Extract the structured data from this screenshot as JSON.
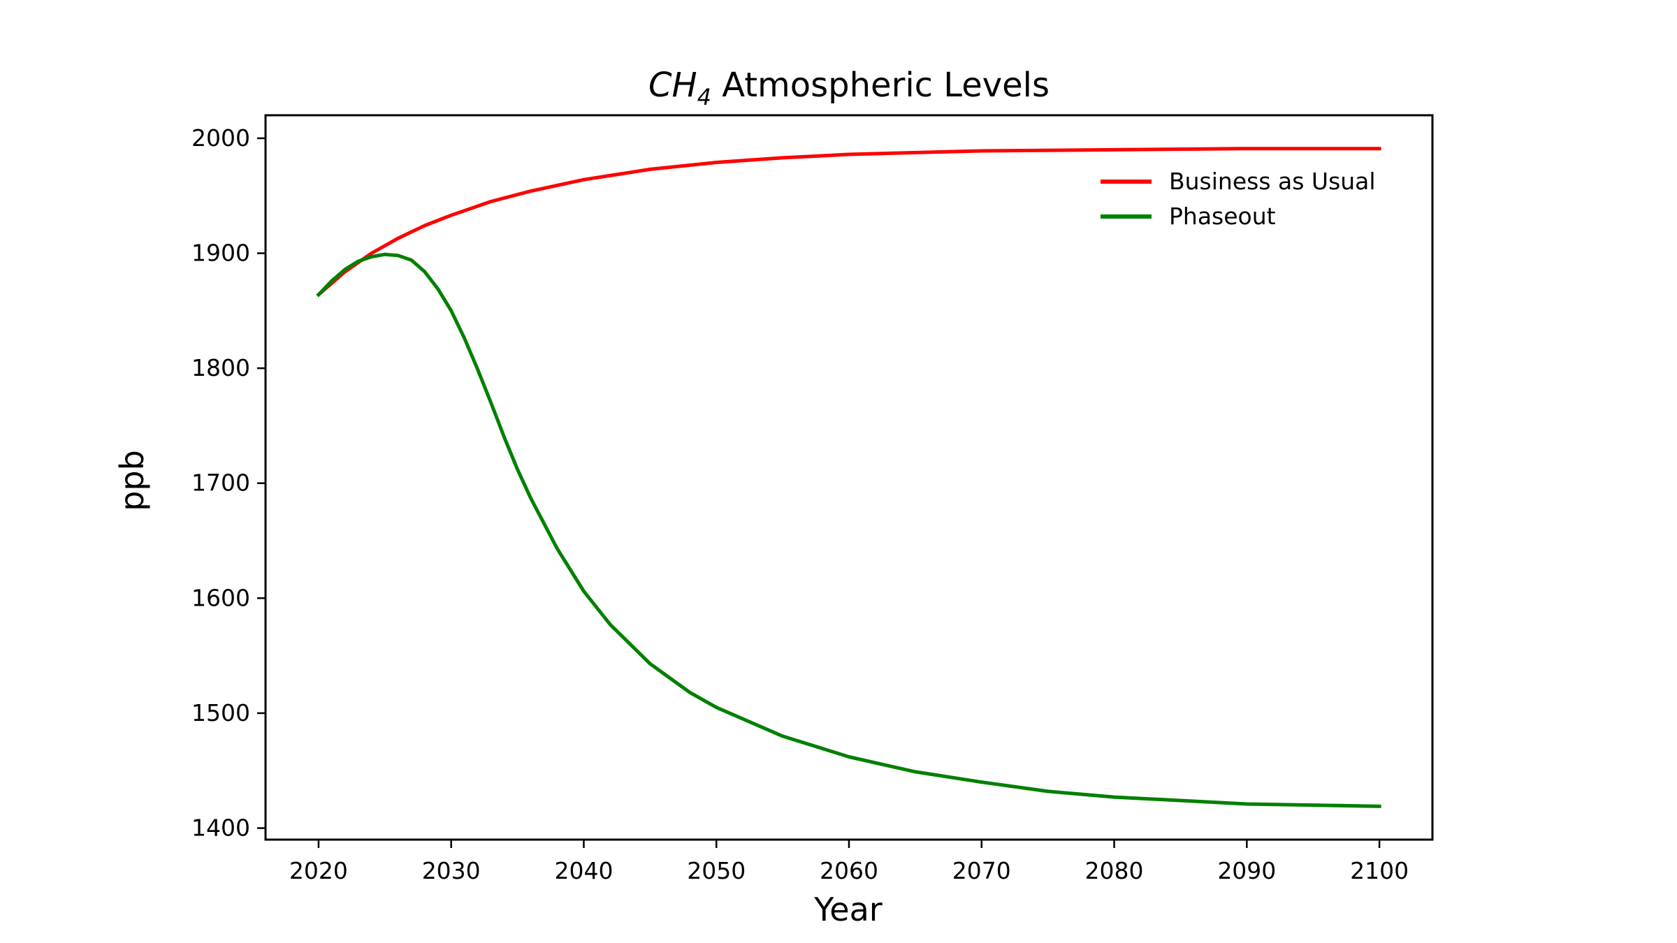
{
  "chart_data": {
    "type": "line",
    "title_main": "CH",
    "title_sub": "4",
    "title_rest": " Atmospheric Levels",
    "xlabel": "Year",
    "ylabel": "ppb",
    "xlim": [
      2016,
      2104
    ],
    "ylim": [
      1390,
      2020
    ],
    "xticks": [
      2020,
      2030,
      2040,
      2050,
      2060,
      2070,
      2080,
      2090,
      2100
    ],
    "yticks": [
      1400,
      1500,
      1600,
      1700,
      1800,
      1900,
      2000
    ],
    "legend_position": "top-right",
    "series": [
      {
        "name": "Business as Usual",
        "color": "#ff0000",
        "x": [
          2020,
          2022,
          2024,
          2026,
          2028,
          2030,
          2033,
          2036,
          2040,
          2045,
          2050,
          2055,
          2060,
          2070,
          2080,
          2090,
          2100
        ],
        "y": [
          1864,
          1884,
          1900,
          1913,
          1924,
          1933,
          1945,
          1954,
          1964,
          1973,
          1979,
          1983,
          1986,
          1989,
          1990,
          1991,
          1991
        ]
      },
      {
        "name": "Phaseout",
        "color": "#008000",
        "x": [
          2020,
          2021,
          2022,
          2023,
          2024,
          2025,
          2026,
          2027,
          2028,
          2029,
          2030,
          2031,
          2032,
          2033,
          2034,
          2035,
          2036,
          2038,
          2040,
          2042,
          2045,
          2048,
          2050,
          2055,
          2060,
          2065,
          2070,
          2075,
          2080,
          2085,
          2090,
          2095,
          2100
        ],
        "y": [
          1864,
          1876,
          1886,
          1893,
          1897,
          1899,
          1898,
          1894,
          1884,
          1869,
          1850,
          1826,
          1799,
          1770,
          1740,
          1712,
          1687,
          1643,
          1606,
          1577,
          1543,
          1518,
          1505,
          1480,
          1462,
          1449,
          1440,
          1432,
          1427,
          1424,
          1421,
          1420,
          1419
        ]
      }
    ]
  }
}
